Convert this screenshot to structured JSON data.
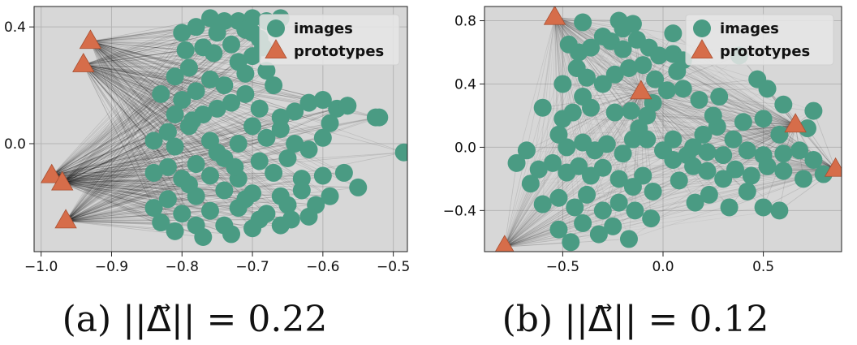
{
  "colors": {
    "plot_bg": "#d7d7d7",
    "grid": "#b5b5b5",
    "images": "#4a9b83",
    "prototypes": "#d66d4a",
    "edges": "#000000"
  },
  "chart_data": [
    {
      "type": "scatter",
      "caption": "(a) ||Δ⃗|| = 0.22",
      "xlim": [
        -1.01,
        -0.48
      ],
      "ylim": [
        -0.37,
        0.47
      ],
      "xticks": [
        -1.0,
        -0.9,
        -0.8,
        -0.7,
        -0.6,
        -0.5
      ],
      "xtick_labels": [
        "−1.0",
        "−0.9",
        "−0.8",
        "−0.7",
        "−0.6",
        "−0.5"
      ],
      "yticks": [
        0.4,
        0.0
      ],
      "ytick_labels": [
        "0.4",
        "0.0"
      ],
      "grid": true,
      "legend": {
        "placement": "top-right",
        "entries": [
          "images",
          "prototypes"
        ]
      },
      "series": [
        {
          "name": "prototypes",
          "marker": "triangle",
          "points": [
            [
              -0.93,
              0.35
            ],
            [
              -0.94,
              0.27
            ],
            [
              -0.985,
              -0.11
            ],
            [
              -0.97,
              -0.135
            ],
            [
              -0.965,
              -0.265
            ]
          ]
        },
        {
          "name": "images",
          "marker": "circle",
          "points": [
            [
              -0.76,
              0.43
            ],
            [
              -0.74,
              0.42
            ],
            [
              -0.72,
              0.42
            ],
            [
              -0.7,
              0.43
            ],
            [
              -0.68,
              0.42
            ],
            [
              -0.66,
              0.43
            ],
            [
              -0.78,
              0.4
            ],
            [
              -0.8,
              0.38
            ],
            [
              -0.75,
              0.38
            ],
            [
              -0.71,
              0.39
            ],
            [
              -0.69,
              0.36
            ],
            [
              -0.73,
              0.34
            ],
            [
              -0.77,
              0.33
            ],
            [
              -0.7,
              0.3
            ],
            [
              -0.72,
              0.28
            ],
            [
              -0.68,
              0.25
            ],
            [
              -0.79,
              0.26
            ],
            [
              -0.81,
              0.23
            ],
            [
              -0.76,
              0.22
            ],
            [
              -0.74,
              0.2
            ],
            [
              -0.78,
              0.18
            ],
            [
              -0.8,
              0.15
            ],
            [
              -0.83,
              0.17
            ],
            [
              -0.71,
              0.17
            ],
            [
              -0.73,
              0.14
            ],
            [
              -0.75,
              0.12
            ],
            [
              -0.77,
              0.1
            ],
            [
              -0.69,
              0.12
            ],
            [
              -0.66,
              0.09
            ],
            [
              -0.64,
              0.11
            ],
            [
              -0.62,
              0.14
            ],
            [
              -0.6,
              0.15
            ],
            [
              -0.58,
              0.12
            ],
            [
              -0.565,
              0.13
            ],
            [
              -0.525,
              0.09
            ],
            [
              -0.59,
              0.07
            ],
            [
              -0.6,
              0.02
            ],
            [
              -0.66,
              0.05
            ],
            [
              -0.7,
              0.06
            ],
            [
              -0.79,
              0.06
            ],
            [
              -0.82,
              0.04
            ],
            [
              -0.84,
              0.01
            ],
            [
              -0.81,
              -0.01
            ],
            [
              -0.76,
              0.01
            ],
            [
              -0.72,
              0.0
            ],
            [
              -0.68,
              0.02
            ],
            [
              -0.64,
              0.0
            ],
            [
              -0.62,
              -0.02
            ],
            [
              -0.65,
              -0.05
            ],
            [
              -0.69,
              -0.06
            ],
            [
              -0.74,
              -0.05
            ],
            [
              -0.78,
              -0.07
            ],
            [
              -0.82,
              -0.08
            ],
            [
              -0.84,
              -0.1
            ],
            [
              -0.8,
              -0.12
            ],
            [
              -0.76,
              -0.11
            ],
            [
              -0.72,
              -0.12
            ],
            [
              -0.67,
              -0.1
            ],
            [
              -0.63,
              -0.12
            ],
            [
              -0.6,
              -0.11
            ],
            [
              -0.57,
              -0.1
            ],
            [
              -0.55,
              -0.15
            ],
            [
              -0.59,
              -0.18
            ],
            [
              -0.63,
              -0.16
            ],
            [
              -0.66,
              -0.18
            ],
            [
              -0.7,
              -0.17
            ],
            [
              -0.74,
              -0.16
            ],
            [
              -0.78,
              -0.18
            ],
            [
              -0.82,
              -0.19
            ],
            [
              -0.84,
              -0.22
            ],
            [
              -0.8,
              -0.24
            ],
            [
              -0.76,
              -0.23
            ],
            [
              -0.72,
              -0.22
            ],
            [
              -0.68,
              -0.24
            ],
            [
              -0.65,
              -0.21
            ],
            [
              -0.61,
              -0.21
            ],
            [
              -0.62,
              -0.25
            ],
            [
              -0.66,
              -0.28
            ],
            [
              -0.7,
              -0.29
            ],
            [
              -0.74,
              -0.28
            ],
            [
              -0.78,
              -0.28
            ],
            [
              -0.81,
              -0.3
            ],
            [
              -0.83,
              -0.27
            ],
            [
              -0.77,
              -0.32
            ],
            [
              -0.73,
              -0.31
            ],
            [
              -0.69,
              -0.26
            ],
            [
              -0.71,
              -0.19
            ],
            [
              -0.79,
              -0.14
            ],
            [
              -0.75,
              -0.03
            ],
            [
              -0.81,
              0.1
            ],
            [
              -0.67,
              0.2
            ],
            [
              -0.7,
              0.38
            ],
            [
              -0.755,
              0.31
            ],
            [
              -0.795,
              0.32
            ],
            [
              -0.685,
              0.33
            ],
            [
              -0.71,
              0.24
            ],
            [
              -0.785,
              0.08
            ],
            [
              -0.725,
              -0.08
            ],
            [
              -0.645,
              -0.26
            ],
            [
              -0.485,
              -0.03
            ],
            [
              -0.52,
              0.09
            ],
            [
              -0.565,
              0.13
            ]
          ]
        }
      ]
    },
    {
      "type": "scatter",
      "caption": "(b) ||Δ⃗|| = 0.12",
      "xlim": [
        -0.89,
        0.89
      ],
      "ylim": [
        -0.66,
        0.89
      ],
      "xticks": [
        -0.5,
        0.0,
        0.5
      ],
      "xtick_labels": [
        "−0.5",
        "0.0",
        "0.5"
      ],
      "yticks": [
        0.8,
        0.4,
        0.0,
        -0.4
      ],
      "ytick_labels": [
        "0.8",
        "0.4",
        "0.0",
        "−0.4"
      ],
      "grid": true,
      "legend": {
        "placement": "top-right",
        "entries": [
          "images",
          "prototypes"
        ]
      },
      "series": [
        {
          "name": "prototypes",
          "marker": "triangle",
          "points": [
            [
              -0.54,
              0.82
            ],
            [
              -0.11,
              0.35
            ],
            [
              0.66,
              0.14
            ],
            [
              0.86,
              -0.14
            ],
            [
              -0.79,
              -0.63
            ]
          ]
        },
        {
          "name": "images",
          "marker": "circle",
          "points": [
            [
              -0.4,
              0.79
            ],
            [
              -0.22,
              0.8
            ],
            [
              -0.2,
              0.75
            ],
            [
              -0.15,
              0.78
            ],
            [
              0.05,
              0.72
            ],
            [
              -0.47,
              0.65
            ],
            [
              -0.42,
              0.6
            ],
            [
              -0.36,
              0.63
            ],
            [
              -0.3,
              0.7
            ],
            [
              -0.26,
              0.67
            ],
            [
              -0.2,
              0.62
            ],
            [
              -0.13,
              0.68
            ],
            [
              -0.07,
              0.63
            ],
            [
              -0.02,
              0.58
            ],
            [
              0.05,
              0.59
            ],
            [
              0.1,
              0.55
            ],
            [
              0.07,
              0.48
            ],
            [
              -0.43,
              0.5
            ],
            [
              -0.38,
              0.44
            ],
            [
              -0.3,
              0.4
            ],
            [
              -0.24,
              0.46
            ],
            [
              -0.17,
              0.5
            ],
            [
              -0.1,
              0.52
            ],
            [
              -0.04,
              0.43
            ],
            [
              0.02,
              0.36
            ],
            [
              0.1,
              0.37
            ],
            [
              0.18,
              0.3
            ],
            [
              0.28,
              0.32
            ],
            [
              0.38,
              0.58
            ],
            [
              0.47,
              0.43
            ],
            [
              0.52,
              0.37
            ],
            [
              0.6,
              0.27
            ],
            [
              0.75,
              0.23
            ],
            [
              0.72,
              0.12
            ],
            [
              0.58,
              0.08
            ],
            [
              0.5,
              0.18
            ],
            [
              0.4,
              0.16
            ],
            [
              0.35,
              0.05
            ],
            [
              0.27,
              0.13
            ],
            [
              0.2,
              0.08
            ],
            [
              0.15,
              0.0
            ],
            [
              0.12,
              -0.05
            ],
            [
              0.22,
              -0.03
            ],
            [
              0.3,
              -0.05
            ],
            [
              0.42,
              -0.02
            ],
            [
              0.5,
              -0.05
            ],
            [
              0.6,
              -0.04
            ],
            [
              0.68,
              -0.02
            ],
            [
              0.75,
              -0.08
            ],
            [
              0.8,
              -0.17
            ],
            [
              0.7,
              -0.2
            ],
            [
              0.6,
              -0.15
            ],
            [
              0.52,
              -0.12
            ],
            [
              0.44,
              -0.18
            ],
            [
              0.36,
              -0.14
            ],
            [
              0.3,
              -0.2
            ],
            [
              0.22,
              -0.15
            ],
            [
              0.15,
              -0.12
            ],
            [
              0.05,
              -0.08
            ],
            [
              0.0,
              -0.02
            ],
            [
              0.05,
              0.05
            ],
            [
              -0.05,
              0.28
            ],
            [
              -0.08,
              0.2
            ],
            [
              -0.16,
              0.23
            ],
            [
              -0.24,
              0.22
            ],
            [
              -0.36,
              0.25
            ],
            [
              -0.45,
              0.22
            ],
            [
              -0.5,
              0.18
            ],
            [
              -0.6,
              0.25
            ],
            [
              -0.52,
              0.08
            ],
            [
              -0.48,
              0.0
            ],
            [
              -0.4,
              0.03
            ],
            [
              -0.34,
              -0.02
            ],
            [
              -0.28,
              0.02
            ],
            [
              -0.2,
              -0.04
            ],
            [
              -0.15,
              0.05
            ],
            [
              -0.08,
              0.05
            ],
            [
              -0.68,
              -0.02
            ],
            [
              -0.73,
              -0.1
            ],
            [
              -0.66,
              -0.23
            ],
            [
              -0.62,
              -0.14
            ],
            [
              -0.55,
              -0.1
            ],
            [
              -0.48,
              -0.16
            ],
            [
              -0.42,
              -0.12
            ],
            [
              -0.36,
              -0.18
            ],
            [
              -0.3,
              -0.13
            ],
            [
              -0.22,
              -0.2
            ],
            [
              -0.15,
              -0.25
            ],
            [
              -0.1,
              -0.18
            ],
            [
              -0.05,
              -0.28
            ],
            [
              -0.6,
              -0.36
            ],
            [
              -0.52,
              -0.32
            ],
            [
              -0.44,
              -0.38
            ],
            [
              -0.38,
              -0.3
            ],
            [
              -0.3,
              -0.4
            ],
            [
              -0.22,
              -0.35
            ],
            [
              -0.14,
              -0.4
            ],
            [
              -0.06,
              -0.45
            ],
            [
              -0.4,
              -0.48
            ],
            [
              -0.32,
              -0.55
            ],
            [
              -0.25,
              -0.5
            ],
            [
              -0.17,
              -0.58
            ],
            [
              -0.52,
              -0.52
            ],
            [
              -0.46,
              -0.6
            ],
            [
              0.16,
              -0.35
            ],
            [
              0.23,
              -0.3
            ],
            [
              0.33,
              -0.38
            ],
            [
              0.5,
              -0.38
            ],
            [
              0.58,
              -0.4
            ],
            [
              0.42,
              -0.28
            ],
            [
              0.08,
              -0.21
            ],
            [
              -0.5,
              0.4
            ],
            [
              -0.4,
              0.32
            ],
            [
              -0.12,
              0.12
            ],
            [
              0.25,
              0.2
            ]
          ]
        }
      ]
    }
  ]
}
